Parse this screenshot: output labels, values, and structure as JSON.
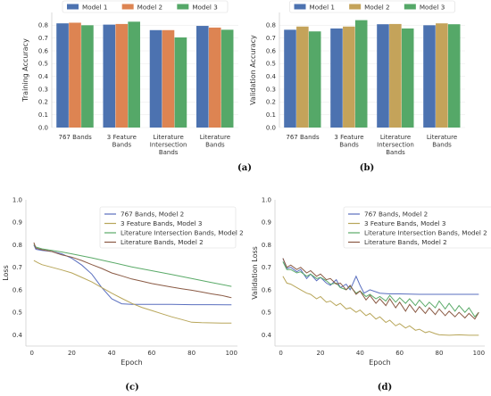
{
  "captions": [
    "(a)",
    "(b)",
    "(c)",
    "(d)"
  ],
  "chart_data": [
    {
      "type": "bar",
      "caption": "(a)",
      "ylabel": "Training Accuracy",
      "ylim": [
        0,
        0.9
      ],
      "yticks": [
        "0.0",
        "0.1",
        "0.2",
        "0.3",
        "0.4",
        "0.5",
        "0.6",
        "0.7",
        "0.8"
      ],
      "categories": [
        [
          "767 Bands"
        ],
        [
          "3 Feature",
          "Bands"
        ],
        [
          "Literature",
          "Intersection",
          "Bands"
        ],
        [
          "Literature",
          "Bands"
        ]
      ],
      "legend_position": "top",
      "series": [
        {
          "name": "Model 1",
          "color": "#4c72b0",
          "values": [
            0.815,
            0.805,
            0.762,
            0.795
          ]
        },
        {
          "name": "Model 2",
          "color": "#dd8452",
          "values": [
            0.82,
            0.81,
            0.762,
            0.782
          ]
        },
        {
          "name": "Model 3",
          "color": "#55a868",
          "values": [
            0.8,
            0.828,
            0.705,
            0.765
          ]
        }
      ]
    },
    {
      "type": "bar",
      "caption": "(b)",
      "ylabel": "Validation Accuracy",
      "ylim": [
        0,
        0.9
      ],
      "yticks": [
        "0.0",
        "0.1",
        "0.2",
        "0.3",
        "0.4",
        "0.5",
        "0.6",
        "0.7",
        "0.8"
      ],
      "categories": [
        [
          "767 Bands"
        ],
        [
          "3 Feature",
          "Bands"
        ],
        [
          "Literature",
          "Intersection",
          "Bands"
        ],
        [
          "Literature",
          "Bands"
        ]
      ],
      "legend_position": "top",
      "series": [
        {
          "name": "Model 1",
          "color": "#4c72b0",
          "values": [
            0.765,
            0.775,
            0.808,
            0.8
          ]
        },
        {
          "name": "Model 2",
          "color": "#c4a35a",
          "values": [
            0.79,
            0.79,
            0.81,
            0.815
          ]
        },
        {
          "name": "Model 3",
          "color": "#55a868",
          "values": [
            0.752,
            0.84,
            0.775,
            0.808
          ]
        }
      ]
    },
    {
      "type": "line",
      "caption": "(c)",
      "xlabel": "Epoch",
      "ylabel": "Loss",
      "xlim": [
        -3,
        103
      ],
      "ylim": [
        0.35,
        1.0
      ],
      "xticks": [
        "0",
        "20",
        "40",
        "60",
        "80",
        "100"
      ],
      "yticks": [
        "0.4",
        "0.5",
        "0.6",
        "0.7",
        "0.8",
        "0.9",
        "1.0"
      ],
      "legend_position": "top-right",
      "series": [
        {
          "name": "767 Bands, Model 2",
          "color": "#5a6fbf",
          "x": [
            1,
            2,
            5,
            10,
            15,
            20,
            25,
            30,
            35,
            40,
            45,
            50,
            60,
            70,
            80,
            90,
            100
          ],
          "y": [
            0.8,
            0.78,
            0.775,
            0.77,
            0.76,
            0.74,
            0.71,
            0.67,
            0.61,
            0.56,
            0.538,
            0.535,
            0.535,
            0.535,
            0.534,
            0.534,
            0.533
          ]
        },
        {
          "name": "3 Feature Bands, Model 3",
          "color": "#b8a65a",
          "x": [
            1,
            3,
            5,
            10,
            15,
            20,
            25,
            30,
            35,
            40,
            45,
            50,
            55,
            60,
            65,
            70,
            75,
            80,
            85,
            90,
            95,
            100
          ],
          "y": [
            0.73,
            0.72,
            0.712,
            0.7,
            0.688,
            0.675,
            0.655,
            0.635,
            0.61,
            0.585,
            0.562,
            0.54,
            0.522,
            0.508,
            0.494,
            0.48,
            0.468,
            0.456,
            0.454,
            0.453,
            0.452,
            0.452
          ]
        },
        {
          "name": "Literature Intersection Bands, Model 2",
          "color": "#5aaa68",
          "x": [
            1,
            2,
            5,
            10,
            15,
            20,
            30,
            40,
            50,
            60,
            70,
            80,
            90,
            100
          ],
          "y": [
            0.8,
            0.79,
            0.782,
            0.775,
            0.768,
            0.76,
            0.742,
            0.722,
            0.702,
            0.685,
            0.668,
            0.65,
            0.632,
            0.615
          ]
        },
        {
          "name": "Literature Bands, Model 2",
          "color": "#8a5a44",
          "x": [
            1,
            2,
            5,
            10,
            15,
            20,
            25,
            30,
            35,
            40,
            45,
            50,
            55,
            60,
            65,
            70,
            75,
            80,
            85,
            90,
            95,
            100
          ],
          "y": [
            0.81,
            0.785,
            0.778,
            0.77,
            0.755,
            0.745,
            0.73,
            0.712,
            0.695,
            0.675,
            0.662,
            0.648,
            0.638,
            0.628,
            0.62,
            0.612,
            0.605,
            0.598,
            0.59,
            0.582,
            0.575,
            0.565
          ]
        }
      ]
    },
    {
      "type": "line",
      "caption": "(d)",
      "xlabel": "Epoch",
      "ylabel": "Validation Loss",
      "xlim": [
        -3,
        103
      ],
      "ylim": [
        0.35,
        1.0
      ],
      "xticks": [
        "0",
        "20",
        "40",
        "60",
        "80",
        "100"
      ],
      "yticks": [
        "0.4",
        "0.5",
        "0.6",
        "0.7",
        "0.8",
        "0.9",
        "1.0"
      ],
      "legend_position": "top-right",
      "series": [
        {
          "name": "767 Bands, Model 2",
          "color": "#5a6fbf",
          "x": [
            1,
            3,
            5,
            8,
            10,
            13,
            15,
            18,
            20,
            23,
            25,
            28,
            30,
            33,
            35,
            38,
            40,
            42,
            45,
            50,
            55,
            60,
            70,
            80,
            90,
            100
          ],
          "y": [
            0.74,
            0.695,
            0.7,
            0.68,
            0.69,
            0.65,
            0.67,
            0.64,
            0.655,
            0.63,
            0.62,
            0.645,
            0.61,
            0.625,
            0.6,
            0.66,
            0.62,
            0.585,
            0.6,
            0.585,
            0.582,
            0.582,
            0.58,
            0.58,
            0.58,
            0.58
          ]
        },
        {
          "name": "3 Feature Bands, Model 3",
          "color": "#b8a65a",
          "x": [
            1,
            3,
            5,
            8,
            10,
            13,
            15,
            18,
            20,
            23,
            25,
            28,
            30,
            33,
            35,
            38,
            40,
            43,
            45,
            48,
            50,
            53,
            55,
            58,
            60,
            63,
            65,
            68,
            70,
            73,
            75,
            78,
            80,
            85,
            90,
            95,
            100
          ],
          "y": [
            0.66,
            0.63,
            0.625,
            0.61,
            0.6,
            0.585,
            0.58,
            0.56,
            0.57,
            0.545,
            0.55,
            0.53,
            0.54,
            0.515,
            0.52,
            0.5,
            0.51,
            0.485,
            0.495,
            0.47,
            0.48,
            0.455,
            0.465,
            0.44,
            0.45,
            0.43,
            0.44,
            0.42,
            0.425,
            0.41,
            0.415,
            0.405,
            0.4,
            0.398,
            0.4,
            0.398,
            0.398
          ]
        },
        {
          "name": "Literature Intersection Bands, Model 2",
          "color": "#5aaa68",
          "x": [
            1,
            3,
            5,
            8,
            10,
            13,
            15,
            18,
            20,
            23,
            25,
            28,
            30,
            33,
            35,
            38,
            40,
            43,
            45,
            48,
            50,
            53,
            55,
            58,
            60,
            63,
            65,
            68,
            70,
            73,
            75,
            78,
            80,
            83,
            85,
            88,
            90,
            93,
            95,
            98,
            100
          ],
          "y": [
            0.725,
            0.69,
            0.69,
            0.675,
            0.68,
            0.66,
            0.67,
            0.65,
            0.655,
            0.64,
            0.625,
            0.63,
            0.61,
            0.6,
            0.615,
            0.585,
            0.595,
            0.57,
            0.58,
            0.56,
            0.57,
            0.55,
            0.575,
            0.545,
            0.565,
            0.54,
            0.56,
            0.53,
            0.555,
            0.525,
            0.545,
            0.52,
            0.55,
            0.515,
            0.54,
            0.505,
            0.53,
            0.5,
            0.52,
            0.48,
            0.5
          ]
        },
        {
          "name": "Literature Bands, Model 2",
          "color": "#8a5a44",
          "x": [
            1,
            3,
            5,
            8,
            10,
            13,
            15,
            18,
            20,
            23,
            25,
            28,
            30,
            33,
            35,
            38,
            40,
            43,
            45,
            48,
            50,
            53,
            55,
            58,
            60,
            63,
            65,
            68,
            70,
            73,
            75,
            78,
            80,
            83,
            85,
            88,
            90,
            93,
            95,
            98,
            100
          ],
          "y": [
            0.74,
            0.7,
            0.71,
            0.69,
            0.7,
            0.675,
            0.685,
            0.66,
            0.67,
            0.645,
            0.65,
            0.625,
            0.63,
            0.6,
            0.62,
            0.58,
            0.595,
            0.555,
            0.575,
            0.54,
            0.56,
            0.53,
            0.56,
            0.52,
            0.545,
            0.505,
            0.535,
            0.5,
            0.525,
            0.495,
            0.52,
            0.49,
            0.515,
            0.485,
            0.505,
            0.48,
            0.5,
            0.475,
            0.495,
            0.47,
            0.5
          ]
        }
      ]
    }
  ]
}
